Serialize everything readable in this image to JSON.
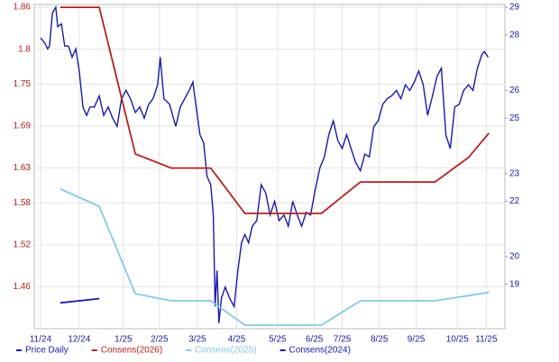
{
  "chart_data": {
    "type": "line",
    "series": [
      {
        "name": "Price Daily",
        "color": "#1a1aa6",
        "axis": "y2",
        "x": [
          0,
          0.12,
          0.19,
          0.24,
          0.32,
          0.41,
          0.46,
          0.56,
          0.65,
          0.75,
          0.85,
          0.95,
          1.04,
          1.14,
          1.24,
          1.33,
          1.45,
          1.58,
          1.7,
          1.82,
          1.94,
          2.06,
          2.18,
          2.3,
          2.42,
          2.55,
          2.67,
          2.79,
          2.91,
          3.03,
          3.15,
          3.22,
          3.32,
          3.47,
          3.64,
          3.76,
          3.88,
          4.0,
          4.1,
          4.19,
          4.29,
          4.39,
          4.48,
          4.58,
          4.65,
          4.7,
          4.75,
          4.8,
          4.87,
          4.97,
          5.09,
          5.21,
          5.31,
          5.41,
          5.5,
          5.6,
          5.7,
          5.82,
          5.94,
          6.06,
          6.18,
          6.3,
          6.42,
          6.55,
          6.67,
          6.79,
          6.91,
          7.03,
          7.15,
          7.27,
          7.39,
          7.52,
          7.64,
          7.76,
          7.88,
          8.0,
          8.12,
          8.24,
          8.36,
          8.48,
          8.61,
          8.73,
          8.85,
          8.97,
          9.09,
          9.21,
          9.33,
          9.45,
          9.58,
          9.7,
          9.82,
          9.94,
          10.06,
          10.18,
          10.3,
          10.42,
          10.55,
          10.67,
          10.79,
          10.91,
          11.03,
          11.15,
          11.27,
          11.39,
          11.52,
          11.64,
          11.76,
          11.88,
          11.95,
          12.05
        ],
        "values": [
          27.9,
          27.7,
          27.5,
          27.6,
          28.8,
          29,
          28.3,
          28.4,
          27.6,
          27.6,
          27.2,
          27.5,
          26.7,
          25.4,
          25.1,
          25.4,
          25.4,
          25.8,
          25.1,
          25.4,
          25,
          24.7,
          25.7,
          26,
          25.7,
          25.2,
          25.4,
          25,
          25.5,
          25.7,
          26.2,
          27.2,
          25.7,
          25.5,
          24.7,
          25.4,
          25.7,
          26,
          26.3,
          25.4,
          24.4,
          24.1,
          22.9,
          22.6,
          21.5,
          18.2,
          19.5,
          17.6,
          18.5,
          18.9,
          18.5,
          18.2,
          19.5,
          20.5,
          20.8,
          20.5,
          21.1,
          21.3,
          22.6,
          22.3,
          21.5,
          22,
          21.3,
          21.5,
          21.1,
          22,
          21.5,
          21.1,
          21.6,
          21.5,
          22.4,
          23.2,
          23.6,
          24.4,
          24.9,
          24.2,
          23.9,
          24.4,
          23.9,
          23.4,
          23.1,
          23.7,
          23.6,
          24.7,
          24.9,
          25.5,
          25.7,
          25.8,
          26,
          25.7,
          26.2,
          26,
          26.3,
          26.7,
          26.2,
          25.1,
          25.8,
          26.5,
          26.8,
          24.4,
          23.9,
          25.4,
          25.5,
          26,
          26.2,
          26,
          26.8,
          27.3,
          27.4,
          27.2
        ]
      },
      {
        "name": "Consens(2026)",
        "color": "#b22222",
        "x": [
          0.53,
          1.58,
          2.55,
          3.52,
          4.58,
          5.5,
          7.56,
          8.61,
          10.62,
          11.52,
          12.07
        ],
        "values": [
          1.86,
          1.86,
          1.65,
          1.63,
          1.63,
          1.565,
          1.565,
          1.61,
          1.61,
          1.645,
          1.68
        ]
      },
      {
        "name": "Consens(2025)",
        "color": "#87c8e3",
        "x": [
          0.53,
          1.58,
          2.55,
          3.52,
          4.58,
          5.5,
          7.56,
          8.61,
          10.62,
          12.07
        ],
        "values": [
          1.6,
          1.575,
          1.45,
          1.44,
          1.44,
          1.405,
          1.405,
          1.44,
          1.44,
          1.452
        ]
      },
      {
        "name": "Consens(2024)",
        "color": "#1a1aa6",
        "x": [
          0.53,
          1.58
        ],
        "values": [
          1.437,
          1.443
        ]
      }
    ],
    "xlim": [
      -0.17,
      12.5
    ],
    "xticks": [
      {
        "value": 0,
        "label": "11/24"
      },
      {
        "value": 1.04,
        "label": "12/24"
      },
      {
        "value": 2.23,
        "label": "1/25"
      },
      {
        "value": 3.2,
        "label": "2/25"
      },
      {
        "value": 4.22,
        "label": "3/25"
      },
      {
        "value": 5.28,
        "label": "4/25"
      },
      {
        "value": 6.38,
        "label": "5/25"
      },
      {
        "value": 7.37,
        "label": "6/25"
      },
      {
        "value": 8.12,
        "label": "7/25"
      },
      {
        "value": 9.12,
        "label": "8/25"
      },
      {
        "value": 10.11,
        "label": "9/25"
      },
      {
        "value": 11.22,
        "label": "10/25"
      },
      {
        "value": 12.0,
        "label": "11/25"
      }
    ],
    "ylim": [
      1.4,
      1.864
    ],
    "yticks": [
      1.46,
      1.52,
      1.58,
      1.63,
      1.69,
      1.75,
      1.8,
      1.86
    ],
    "y2lim": [
      17.4,
      29.1
    ],
    "y2ticks": [
      19,
      20,
      22,
      23,
      25,
      26,
      28,
      29
    ],
    "grid": true
  }
}
